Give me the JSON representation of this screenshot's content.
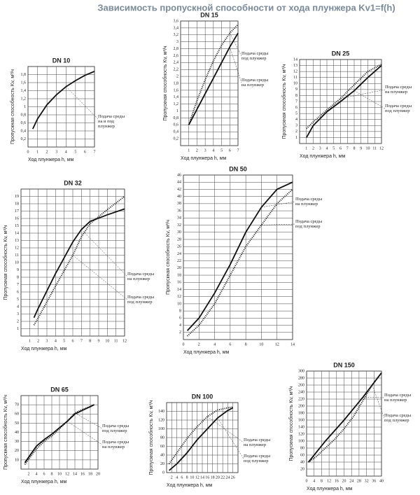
{
  "title": "Зависимость пропускной способности от хода плунжера Kv1=f(h)",
  "chart_data": [
    {
      "type": "line",
      "title": "DN 10",
      "xlabel": "Ход плунжера h, мм",
      "ylabel": "Пропускная способность Kv, м³/ч",
      "grid": true,
      "xlim": [
        0,
        7
      ],
      "xticks": [
        0,
        1,
        2,
        3,
        4,
        5,
        6,
        7
      ],
      "ylim": [
        0,
        2
      ],
      "yticks": [
        {
          "value": 0.2,
          "label": "0,2"
        },
        {
          "value": 0.4,
          "label": "0,4"
        },
        {
          "value": 0.6,
          "label": "0,6"
        },
        {
          "value": 0.8,
          "label": "0,8"
        },
        1,
        {
          "value": 1.2,
          "label": "1,2"
        },
        {
          "value": 1.4,
          "label": "1,4"
        },
        {
          "value": 1.6,
          "label": "1,6"
        },
        {
          "value": 1.8,
          "label": "1,8"
        }
      ],
      "series": [
        {
          "name": "Подача среды на и под плунжер",
          "color": "#111",
          "style": "solid",
          "x": [
            0.5,
            1,
            2,
            3,
            4,
            5,
            6,
            7
          ],
          "values": [
            0.45,
            0.7,
            1.05,
            1.3,
            1.5,
            1.65,
            1.78,
            1.88
          ]
        }
      ]
    },
    {
      "type": "line",
      "title": "DN 15",
      "xlabel": "Ход плунжера h, мм",
      "ylabel": "Пропускная способность Kv, м³/ч",
      "grid": true,
      "xlim": [
        0,
        7
      ],
      "xticks": [
        1,
        2,
        3,
        4,
        5,
        6,
        7
      ],
      "ylim": [
        0,
        3.6
      ],
      "yticks": [
        {
          "value": 0.2,
          "label": "0,2"
        },
        {
          "value": 0.4,
          "label": "0,4"
        },
        {
          "value": 0.6,
          "label": "0,6"
        },
        {
          "value": 0.8,
          "label": "0,8"
        },
        1,
        {
          "value": 1.2,
          "label": "1,2"
        },
        {
          "value": 1.4,
          "label": "1,4"
        },
        {
          "value": 1.6,
          "label": "1,6"
        },
        {
          "value": 1.8,
          "label": "1,8"
        },
        2,
        {
          "value": 2.2,
          "label": "2,2"
        },
        {
          "value": 2.4,
          "label": "2,4"
        },
        {
          "value": 2.6,
          "label": "2,6"
        },
        {
          "value": 2.8,
          "label": "2,8"
        },
        3,
        {
          "value": 3.2,
          "label": "3,2"
        },
        {
          "value": 3.4,
          "label": "3,4"
        },
        {
          "value": 3.6,
          "label": "3,6"
        }
      ],
      "series": [
        {
          "name": "Подача среды под плунжер",
          "color": "#111",
          "style": "dotted",
          "x": [
            1,
            2,
            3,
            4,
            5,
            6,
            7
          ],
          "values": [
            0.6,
            1.3,
            1.9,
            2.45,
            2.9,
            3.25,
            3.5
          ]
        },
        {
          "name": "Подача среды на плунжер",
          "color": "#111",
          "style": "solid",
          "x": [
            1,
            2,
            3,
            4,
            5,
            6,
            7
          ],
          "values": [
            0.6,
            1.05,
            1.5,
            1.95,
            2.4,
            2.85,
            3.25
          ]
        }
      ]
    },
    {
      "type": "line",
      "title": "DN 25",
      "xlabel": "Ход плунжера h, мм",
      "ylabel": "Пропускная способность Kv, м³/ч",
      "grid": true,
      "xlim": [
        0,
        12
      ],
      "xticks": [
        1,
        2,
        3,
        4,
        5,
        6,
        7,
        8,
        9,
        10,
        11,
        12
      ],
      "ylim": [
        0,
        14
      ],
      "yticks": [
        1,
        2,
        3,
        4,
        5,
        6,
        7,
        8,
        9,
        10,
        11,
        12,
        13,
        14
      ],
      "series": [
        {
          "name": "Подача среды на плунжер",
          "color": "#111",
          "style": "dotted",
          "x": [
            1,
            2,
            4,
            6,
            8,
            10,
            12
          ],
          "values": [
            2.5,
            3.6,
            5.6,
            7.5,
            9.8,
            12,
            13.2
          ]
        },
        {
          "name": "Подача среды под плунжер",
          "color": "#111",
          "style": "solid",
          "x": [
            1,
            2,
            4,
            6,
            8,
            10,
            12
          ],
          "values": [
            1,
            3,
            5.3,
            7,
            8.8,
            11,
            13
          ]
        }
      ]
    },
    {
      "type": "line",
      "title": "DN 32",
      "xlabel": "Ход плунжера h, мм",
      "ylabel": "Пропускная способность Kv, м³/ч",
      "grid": true,
      "xlim": [
        0,
        12
      ],
      "xticks": [
        1,
        2,
        3,
        4,
        5,
        6,
        7,
        8,
        9,
        10,
        11,
        12
      ],
      "ylim": [
        0,
        20
      ],
      "yticks": [
        1,
        2,
        3,
        4,
        5,
        6,
        7,
        8,
        9,
        10,
        11,
        12,
        13,
        14,
        15,
        16,
        17,
        18,
        19
      ],
      "series": [
        {
          "name": "Подача среды на плунжер",
          "color": "#111",
          "style": "solid",
          "x": [
            1.5,
            2,
            4,
            6,
            7,
            8,
            10,
            12
          ],
          "values": [
            2.5,
            3.8,
            8.5,
            12.8,
            14.5,
            15.6,
            16.5,
            17.3
          ]
        },
        {
          "name": "Подача среды под плунжер",
          "color": "#111",
          "style": "dotted",
          "x": [
            1.5,
            2,
            4,
            6,
            7,
            8,
            10,
            12
          ],
          "values": [
            1.5,
            2.5,
            6.8,
            11,
            13.5,
            15.3,
            17.2,
            19
          ]
        }
      ]
    },
    {
      "type": "line",
      "title": "DN 50",
      "xlabel": "Ход плунжера h, мм",
      "ylabel": "Пропускная способность Kv, м³/ч",
      "grid": true,
      "xlim": [
        0,
        14
      ],
      "xticks": [
        0,
        2,
        4,
        6,
        8,
        10,
        12,
        14
      ],
      "ylim": [
        0,
        46
      ],
      "yticks": [
        2,
        4,
        6,
        8,
        10,
        12,
        14,
        16,
        18,
        20,
        22,
        24,
        26,
        28,
        30,
        32,
        34,
        36,
        38,
        40,
        42,
        44,
        46
      ],
      "series": [
        {
          "name": "Подача среды на плунжер",
          "color": "#111",
          "style": "solid",
          "x": [
            0.5,
            2,
            4,
            6,
            8,
            10,
            12,
            14
          ],
          "values": [
            2.5,
            6,
            13,
            21,
            30,
            37,
            42,
            44
          ]
        },
        {
          "name": "Подача среды под плунжер",
          "color": "#111",
          "style": "dotted",
          "x": [
            0.5,
            2,
            4,
            6,
            8,
            10,
            12,
            14
          ],
          "values": [
            1,
            4,
            10,
            18,
            26,
            32,
            38,
            42
          ]
        }
      ]
    },
    {
      "type": "line",
      "title": "DN 65",
      "xlabel": "Ход плунжера h, мм",
      "ylabel": "Пропускная способность Kv, м³/ч",
      "grid": true,
      "xlim": [
        0,
        20
      ],
      "xticks": [
        2,
        4,
        6,
        8,
        10,
        12,
        14,
        16,
        18,
        20
      ],
      "ylim": [
        0,
        80
      ],
      "yticks": [
        10,
        20,
        30,
        40,
        50,
        60,
        70
      ],
      "series": [
        {
          "name": "Подача среды под плунжер",
          "color": "#111",
          "style": "dotted",
          "x": [
            1,
            4,
            6,
            8,
            10,
            12,
            14,
            16,
            18,
            19
          ],
          "values": [
            5,
            22,
            30,
            36,
            44,
            52,
            61,
            65,
            68,
            70
          ]
        },
        {
          "name": "Подача среды на плунжер",
          "color": "#111",
          "style": "solid",
          "x": [
            1,
            4,
            6,
            8,
            10,
            12,
            14,
            16,
            18,
            19
          ],
          "values": [
            7,
            25,
            32,
            38,
            45,
            52,
            60,
            64,
            68,
            70
          ]
        }
      ]
    },
    {
      "type": "line",
      "title": "DN 100",
      "xlabel": "Ход плунжера h, мм",
      "ylabel": "Пропускная способность Kv, м³/ч",
      "grid": true,
      "xlim": [
        0,
        28
      ],
      "xticks": [
        2,
        4,
        6,
        8,
        10,
        12,
        14,
        16,
        18,
        20,
        22,
        24,
        26
      ],
      "ylim": [
        0,
        160
      ],
      "yticks": [
        0,
        20,
        40,
        60,
        80,
        100,
        120,
        140
      ],
      "series": [
        {
          "name": "Подача среды на плунжер",
          "color": "#111",
          "style": "dotted",
          "x": [
            1,
            4,
            8,
            12,
            16,
            20,
            24,
            26
          ],
          "values": [
            20,
            45,
            78,
            105,
            128,
            143,
            148,
            150
          ]
        },
        {
          "name": "Подача среды под плунжер",
          "color": "#111",
          "style": "solid",
          "x": [
            1,
            4,
            8,
            12,
            16,
            20,
            24,
            26
          ],
          "values": [
            5,
            20,
            45,
            75,
            100,
            125,
            142,
            148
          ]
        }
      ]
    },
    {
      "type": "line",
      "title": "DN 150",
      "xlabel": "Ход плунжера h, мм",
      "ylabel": "Пропускная способность Kv, м³/ч",
      "grid": true,
      "xlim": [
        0,
        40
      ],
      "xticks": [
        0,
        4,
        8,
        12,
        16,
        20,
        24,
        28,
        32,
        36,
        40
      ],
      "ylim": [
        0,
        300
      ],
      "yticks": [
        20,
        40,
        60,
        80,
        100,
        120,
        140,
        160,
        180,
        200,
        220,
        240,
        260,
        280,
        300
      ],
      "series": [
        {
          "name": "Подача среды на плунжер",
          "color": "#111",
          "style": "solid",
          "x": [
            1,
            10,
            20,
            30,
            40
          ],
          "values": [
            40,
            100,
            160,
            225,
            295
          ]
        },
        {
          "name": "Подача среды под плунжер",
          "color": "#111",
          "style": "dotted",
          "x": [
            1,
            5,
            10,
            15,
            20,
            25,
            30,
            35,
            40
          ],
          "values": [
            40,
            55,
            80,
            105,
            135,
            170,
            215,
            260,
            295
          ]
        }
      ]
    }
  ]
}
